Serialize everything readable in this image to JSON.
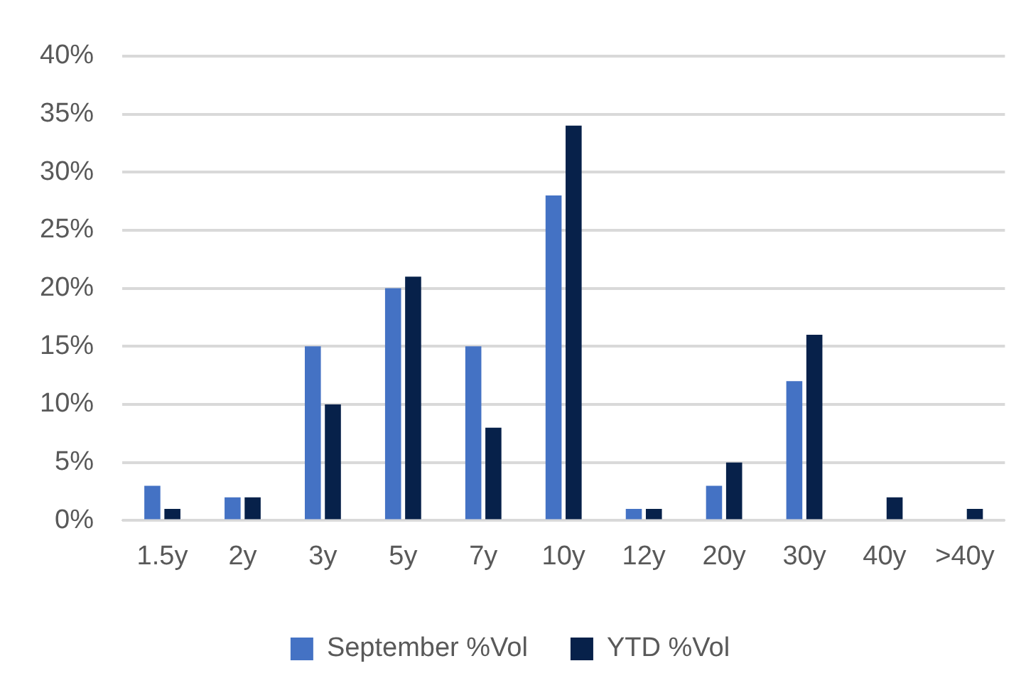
{
  "chart_data": {
    "type": "bar",
    "categories": [
      "1.5y",
      "2y",
      "3y",
      "5y",
      "7y",
      "10y",
      "12y",
      "20y",
      "30y",
      "40y",
      ">40y"
    ],
    "series": [
      {
        "name": "September %Vol",
        "color": "#4472c4",
        "values": [
          3,
          2,
          15,
          20,
          15,
          28,
          1,
          3,
          12,
          0,
          0
        ]
      },
      {
        "name": "YTD %Vol",
        "color": "#07214a",
        "values": [
          1,
          2,
          10,
          21,
          8,
          34,
          1,
          5,
          16,
          2,
          1
        ]
      }
    ],
    "ylim": [
      0,
      40
    ],
    "yticks": [
      {
        "value": 0,
        "label": "0%"
      },
      {
        "value": 5,
        "label": "5%"
      },
      {
        "value": 10,
        "label": "10%"
      },
      {
        "value": 15,
        "label": "15%"
      },
      {
        "value": 20,
        "label": "20%"
      },
      {
        "value": 25,
        "label": "25%"
      },
      {
        "value": 30,
        "label": "30%"
      },
      {
        "value": 35,
        "label": "35%"
      },
      {
        "value": 40,
        "label": "40%"
      }
    ],
    "grid": "y",
    "legend": "bottom"
  }
}
